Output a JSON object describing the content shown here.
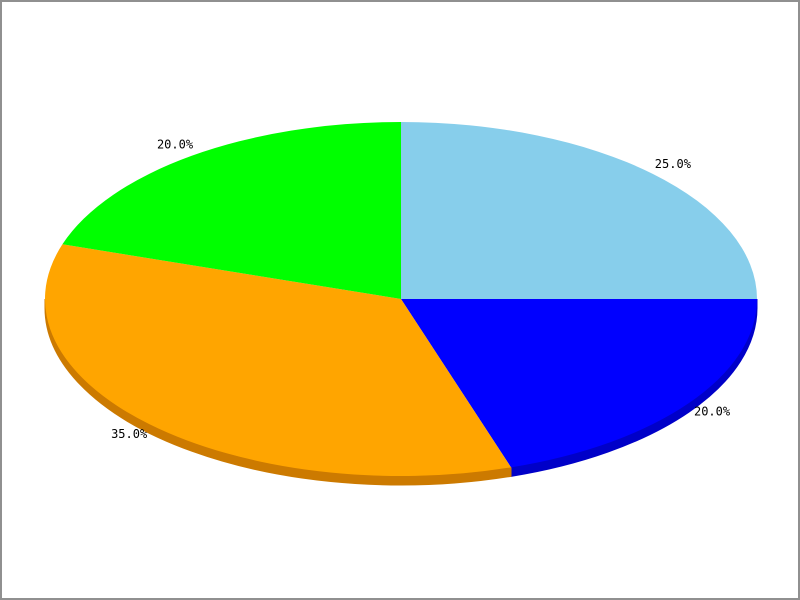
{
  "window": {
    "background": "#FFFFFF",
    "frame_color": "#909090"
  },
  "chart_data": {
    "type": "pie",
    "style": "pie3d",
    "title": "",
    "legend": "none",
    "start_angle": 90,
    "direction": "clockwise",
    "label_format": "percent",
    "label_color": "#000000",
    "slices": [
      {
        "name": "slice-skyblue",
        "label": "25.0%",
        "value": 25.0,
        "color": "#87CEEB",
        "side_color": "#6FB0CF"
      },
      {
        "name": "slice-blue",
        "label": "20.0%",
        "value": 20.0,
        "color": "#0000FF",
        "side_color": "#0000C8"
      },
      {
        "name": "slice-orange",
        "label": "35.0%",
        "value": 35.0,
        "color": "#FFA500",
        "side_color": "#CC7A00"
      },
      {
        "name": "slice-green",
        "label": "20.0%",
        "value": 20.0,
        "color": "#00FF00",
        "side_color": "#00CC00"
      }
    ]
  }
}
